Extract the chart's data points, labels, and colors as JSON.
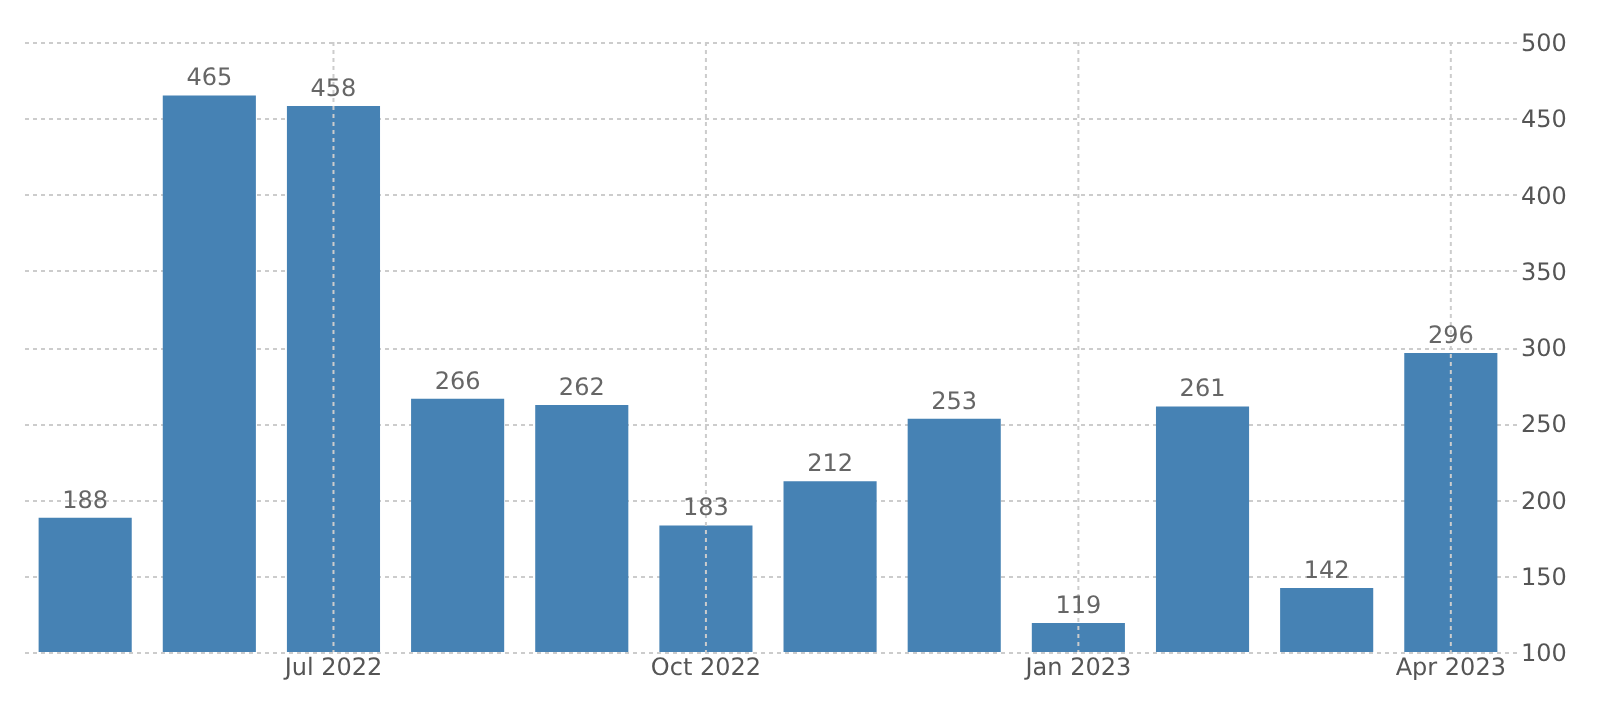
{
  "chart_data": {
    "type": "bar",
    "categories": [
      null,
      null,
      "Jul 2022",
      null,
      null,
      "Oct 2022",
      null,
      null,
      "Jan 2023",
      null,
      null,
      "Apr 2023"
    ],
    "values": [
      188,
      465,
      458,
      266,
      262,
      183,
      212,
      253,
      119,
      261,
      142,
      296
    ],
    "color": "#4682b4",
    "ylim": [
      100,
      500
    ],
    "yticks": [
      100,
      150,
      200,
      250,
      300,
      350,
      400,
      450,
      500
    ],
    "grid": true,
    "data_labels": true
  }
}
